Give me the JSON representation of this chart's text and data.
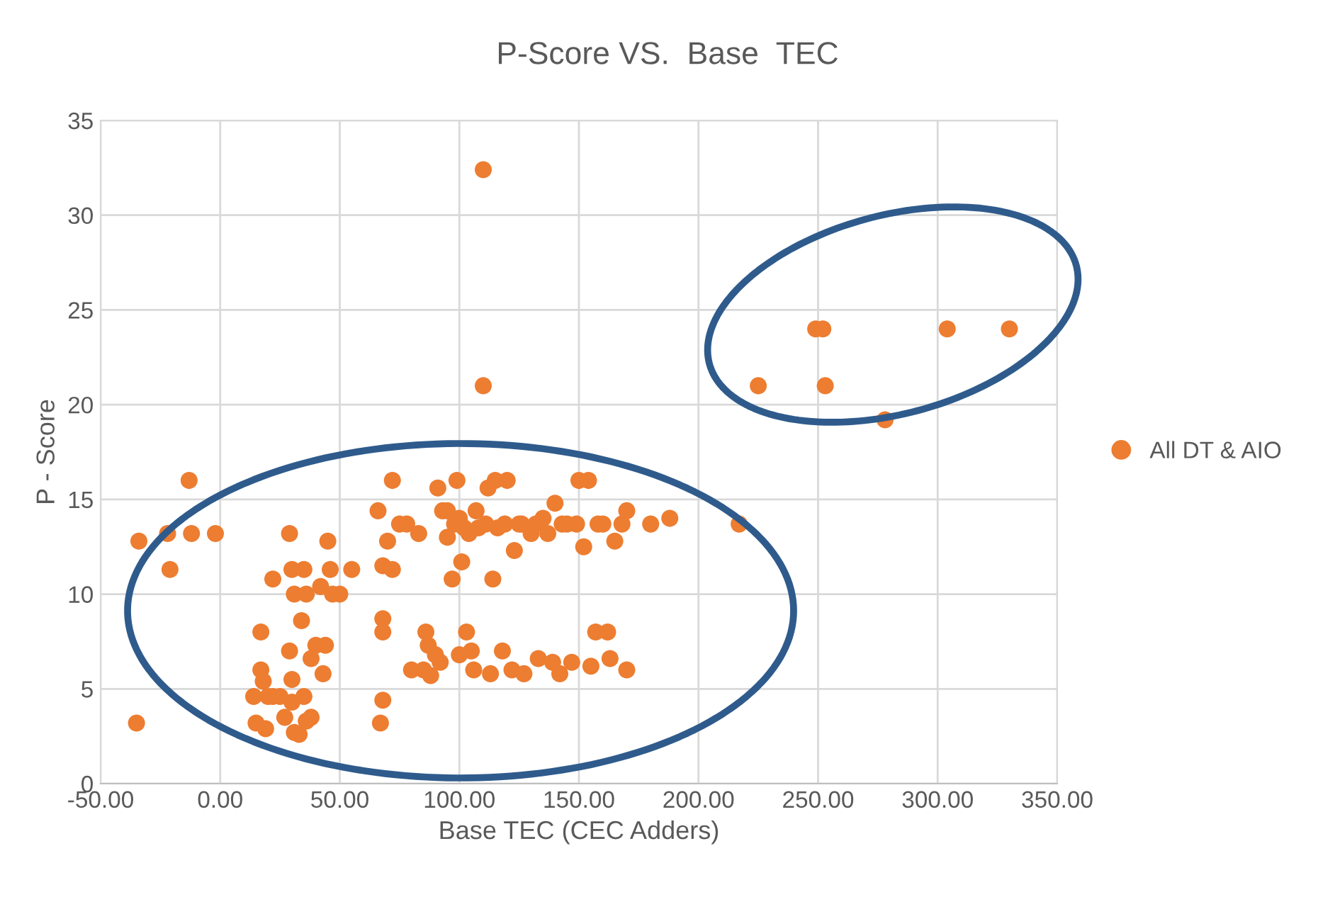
{
  "chart_data": {
    "type": "scatter",
    "title": "P-Score VS.  Base  TEC",
    "xlabel": "Base TEC (CEC Adders)",
    "ylabel": "P - Score",
    "xlim": [
      -50,
      350
    ],
    "ylim": [
      0,
      35
    ],
    "xticks": [
      {
        "value": -50,
        "label": "-50.00"
      },
      {
        "value": 0,
        "label": "0.00"
      },
      {
        "value": 50,
        "label": "50.00"
      },
      {
        "value": 100,
        "label": "100.00"
      },
      {
        "value": 150,
        "label": "150.00"
      },
      {
        "value": 200,
        "label": "200.00"
      },
      {
        "value": 250,
        "label": "250.00"
      },
      {
        "value": 300,
        "label": "300.00"
      },
      {
        "value": 350,
        "label": "350.00"
      }
    ],
    "yticks": [
      0,
      5,
      10,
      15,
      20,
      25,
      30,
      35
    ],
    "grid": true,
    "legend": "right",
    "marker": "circle",
    "series": [
      {
        "name": "All DT & AIO",
        "color": "#ed7d31",
        "x": [
          -35,
          -34,
          -22,
          -21,
          -13,
          -12,
          -2,
          14,
          15,
          17,
          17,
          18,
          20,
          19,
          22,
          22,
          25,
          27,
          29,
          30,
          31,
          29,
          30,
          30,
          31,
          33,
          34,
          35,
          36,
          35,
          36,
          38,
          38,
          40,
          42,
          43,
          45,
          44,
          47,
          46,
          50,
          55,
          67,
          68,
          68,
          68,
          68,
          66,
          70,
          72,
          72,
          75,
          78,
          80,
          83,
          85,
          86,
          87,
          90,
          88,
          91,
          93,
          95,
          97,
          100,
          99,
          101,
          100,
          102,
          103,
          105,
          106,
          108,
          110,
          110,
          112,
          113,
          114,
          115,
          116,
          118,
          120,
          122,
          123,
          125,
          127,
          130,
          133,
          135,
          137,
          139,
          140,
          142,
          145,
          147,
          150,
          152,
          154,
          155,
          157,
          160,
          162,
          163,
          165,
          168,
          170,
          170,
          180,
          188,
          217,
          95,
          98,
          104,
          107,
          111,
          119,
          126,
          132,
          143,
          149,
          158,
          92,
          225,
          249,
          252,
          253,
          278,
          304,
          330
        ],
        "values": [
          3.2,
          12.8,
          13.2,
          11.3,
          16,
          13.2,
          13.2,
          4.6,
          3.2,
          8,
          6,
          5.4,
          4.6,
          2.9,
          10.8,
          4.6,
          4.6,
          3.5,
          13.2,
          11.3,
          10,
          7,
          5.5,
          4.3,
          2.7,
          2.6,
          8.6,
          11.3,
          10,
          4.6,
          3.3,
          6.6,
          3.5,
          7.3,
          10.4,
          5.8,
          12.8,
          7.3,
          10,
          11.3,
          10,
          11.3,
          3.2,
          4.4,
          8.7,
          8,
          11.5,
          14.4,
          12.8,
          11.3,
          16,
          13.7,
          13.7,
          6,
          13.2,
          6,
          8,
          7.3,
          6.8,
          5.7,
          15.6,
          14.4,
          13,
          10.8,
          6.8,
          16,
          11.7,
          14,
          13.5,
          8,
          7,
          6,
          13.5,
          32.4,
          21,
          15.6,
          5.8,
          10.8,
          16,
          13.5,
          7,
          16,
          6,
          12.3,
          13.7,
          5.8,
          13.2,
          6.6,
          14,
          13.2,
          6.4,
          14.8,
          5.8,
          13.7,
          6.4,
          16,
          12.5,
          16,
          6.2,
          8,
          13.7,
          8,
          6.6,
          12.8,
          13.7,
          14.4,
          6,
          13.7,
          14,
          13.7,
          14.4,
          13.7,
          13.2,
          14.4,
          13.7,
          13.7,
          13.7,
          13.7,
          13.7,
          13.7,
          13.7,
          6.4,
          21,
          24,
          24,
          21,
          19.2,
          24,
          24
        ]
      }
    ]
  }
}
